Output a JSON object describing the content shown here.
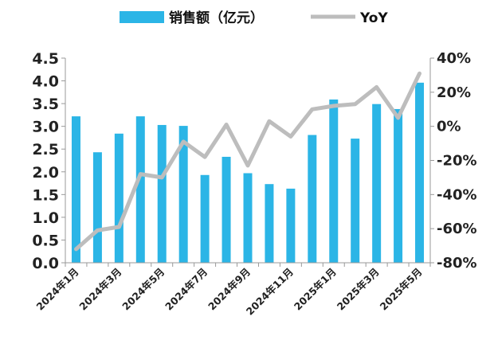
{
  "chart_data": {
    "type": "bar+line",
    "categories": [
      "2024年1月",
      "2024年2月",
      "2024年3月",
      "2024年4月",
      "2024年5月",
      "2024年6月",
      "2024年7月",
      "2024年8月",
      "2024年9月",
      "2024年10月",
      "2024年11月",
      "2024年12月",
      "2025年1月",
      "2025年2月",
      "2025年3月",
      "2025年4月",
      "2025年5月"
    ],
    "x_tick_labels": [
      "2024年1月",
      "2024年3月",
      "2024年5月",
      "2024年7月",
      "2024年9月",
      "2024年11月",
      "2025年1月",
      "2025年3月",
      "2025年5月"
    ],
    "series": [
      {
        "name": "销售额（亿元）",
        "type": "bar",
        "axis": "left",
        "color": "#2bb5e6",
        "values": [
          3.22,
          2.43,
          2.84,
          3.22,
          3.03,
          3.01,
          1.93,
          2.33,
          1.97,
          1.73,
          1.63,
          2.81,
          3.59,
          2.73,
          3.49,
          3.38,
          3.96
        ]
      },
      {
        "name": "YoY",
        "type": "line",
        "axis": "right",
        "color": "#bdbdbd",
        "unit": "%",
        "values": [
          -72,
          -61,
          -59,
          -28,
          -30,
          -9,
          -18,
          1,
          -23,
          3,
          -6,
          10,
          12,
          13,
          23,
          5,
          31
        ]
      }
    ],
    "y_left": {
      "lim": [
        0,
        4.5
      ],
      "ticks": [
        "0.0",
        "0.5",
        "1.0",
        "1.5",
        "2.0",
        "2.5",
        "3.0",
        "3.5",
        "4.0",
        "4.5"
      ]
    },
    "y_right": {
      "lim": [
        -80,
        40
      ],
      "ticks": [
        "-80%",
        "-60%",
        "-40%",
        "-20%",
        "0%",
        "20%",
        "40%"
      ]
    },
    "legend": {
      "position": "top"
    },
    "grid": false
  }
}
